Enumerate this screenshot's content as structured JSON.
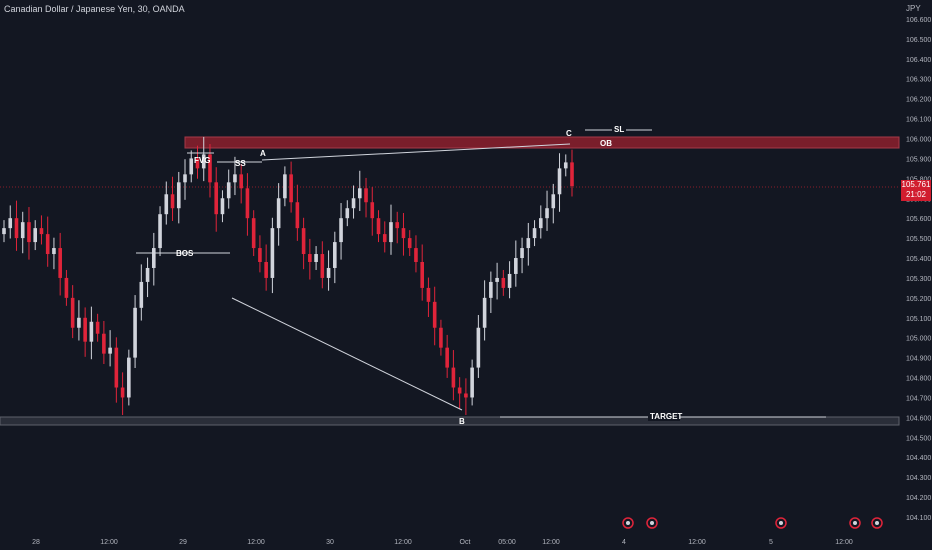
{
  "header": {
    "title": "Canadian Dollar / Japanese Yen, 30, OANDA",
    "currency_unit": "JPY"
  },
  "price_label": {
    "value": "105.761",
    "countdown": "21:02",
    "color": "#d11d2f"
  },
  "colors": {
    "background": "#131722",
    "up_candle": "#d1d4dc",
    "down_candle": "#e0243a",
    "zone": "#7a1e2b",
    "target_zone": "#2a2e39"
  },
  "chart_data": {
    "type": "candlestick",
    "ylim": [
      104.1,
      106.65
    ],
    "y_ticks": [
      "104.100",
      "104.200",
      "104.300",
      "104.400",
      "104.500",
      "104.600",
      "104.700",
      "104.800",
      "104.900",
      "105.000",
      "105.100",
      "105.200",
      "105.300",
      "105.400",
      "105.500",
      "105.600",
      "105.700",
      "105.800",
      "105.900",
      "106.000",
      "106.100",
      "106.200",
      "106.300",
      "106.400",
      "106.500",
      "106.600"
    ],
    "x_ticks": [
      "28",
      "12:00",
      "29",
      "12:00",
      "30",
      "12:00",
      "Oct",
      "05:00",
      "12:00",
      "4",
      "12:00",
      "5",
      "12:00"
    ],
    "candles_close": [
      105.55,
      105.6,
      105.5,
      105.58,
      105.48,
      105.55,
      105.52,
      105.42,
      105.45,
      105.3,
      105.2,
      105.05,
      105.1,
      104.98,
      105.08,
      105.02,
      104.92,
      104.95,
      104.75,
      104.7,
      104.9,
      105.15,
      105.28,
      105.35,
      105.45,
      105.62,
      105.72,
      105.65,
      105.78,
      105.82,
      105.9,
      105.85,
      105.92,
      105.78,
      105.62,
      105.7,
      105.78,
      105.82,
      105.75,
      105.6,
      105.45,
      105.38,
      105.3,
      105.55,
      105.7,
      105.82,
      105.68,
      105.55,
      105.42,
      105.38,
      105.42,
      105.3,
      105.35,
      105.48,
      105.6,
      105.65,
      105.7,
      105.75,
      105.68,
      105.6,
      105.52,
      105.48,
      105.58,
      105.55,
      105.5,
      105.45,
      105.38,
      105.25,
      105.18,
      105.05,
      104.95,
      104.85,
      104.75,
      104.72,
      104.7,
      104.85,
      105.05,
      105.2,
      105.28,
      105.3,
      105.25,
      105.32,
      105.4,
      105.45,
      105.5,
      105.55,
      105.6,
      105.65,
      105.72,
      105.85,
      105.88,
      105.761
    ],
    "levels": {
      "OB_top": 106.0,
      "OB_bottom": 105.955,
      "target": 104.595
    },
    "annotations": [
      "A",
      "B",
      "C",
      "SS",
      "SL",
      "OB",
      "FVG",
      "BOS",
      "TARGET"
    ],
    "event_icons": 5
  }
}
